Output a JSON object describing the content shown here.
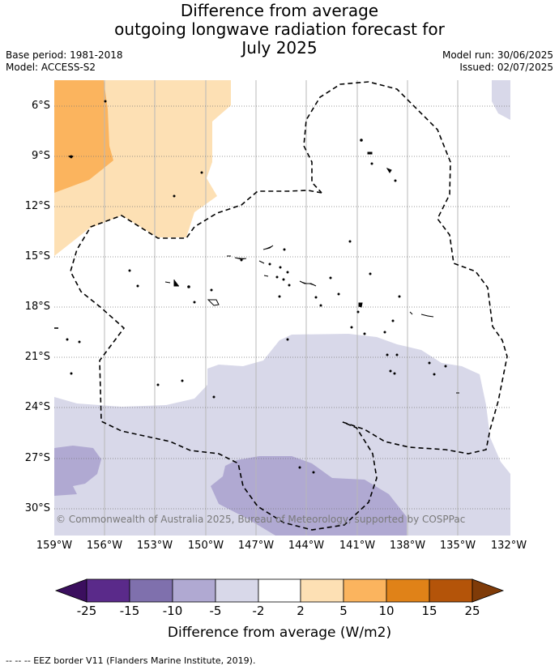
{
  "title": {
    "line1": "Difference from average",
    "line2": "outgoing longwave radiation forecast for",
    "line3": "July 2025"
  },
  "meta": {
    "base_period": "Base period: 1981-2018",
    "model": "Model: ACCESS-S2",
    "model_run": "Model run: 30/06/2025",
    "issued": "Issued: 02/07/2025"
  },
  "map": {
    "lat_labels": [
      "6°S",
      "9°S",
      "12°S",
      "15°S",
      "18°S",
      "21°S",
      "24°S",
      "27°S",
      "30°S"
    ],
    "lon_labels": [
      "159°W",
      "156°W",
      "153°W",
      "150°W",
      "147°W",
      "144°W",
      "141°W",
      "138°W",
      "135°W",
      "132°W"
    ],
    "copyright": "© Commonwealth of Australia 2025, Bureau of Meteorology, supported by COSPPac",
    "colors": {
      "m25": "#3b0f5e",
      "m15": "#5a2a8a",
      "m10": "#7f70ad",
      "m5": "#b0a9d2",
      "m2": "#d8d8e9",
      "zero": "#ffffff",
      "p2": "#fde0b4",
      "p5": "#fbb45e",
      "p10": "#e08218",
      "p15": "#b45409",
      "p25": "#7f3b08"
    }
  },
  "colorbar": {
    "ticks": [
      "-25",
      "-15",
      "-10",
      "-5",
      "-2",
      "2",
      "5",
      "10",
      "15",
      "25"
    ],
    "label": "Difference from average (W/m2)"
  },
  "footnote": "-- -- -- EEZ border V11 (Flanders Marine Institute, 2019)."
}
